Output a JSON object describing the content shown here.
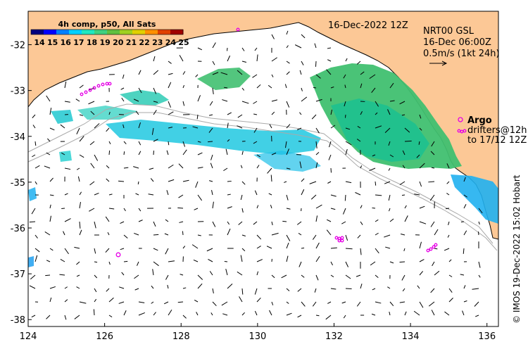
{
  "map": {
    "date_label": "16-Dec-2022 12Z",
    "credit": "© IMOS 19-Dec-2022 15:02 Hobart",
    "colors": {
      "land": "#fcc896",
      "ocean": "#ffffff",
      "isobath": "#aaaaaa",
      "argo": "#e600e6",
      "arrow": "#000000"
    }
  },
  "colorbar": {
    "title": "4h comp, p50, All Sats",
    "ticks": [
      "14",
      "15",
      "16",
      "17",
      "18",
      "19",
      "20",
      "21",
      "22",
      "23",
      "24",
      "25"
    ],
    "colors": [
      "#00007f",
      "#0000ff",
      "#0080ff",
      "#00d0ff",
      "#20e8c0",
      "#40d080",
      "#60c040",
      "#a0d020",
      "#e0d000",
      "#ff9000",
      "#e04000",
      "#a00000"
    ]
  },
  "current_legend": {
    "product": "NRT00 GSL",
    "time": "16-Dec 06:00Z",
    "scale": "0.5m/s (1kt 24h)"
  },
  "argo_legend": {
    "title": "Argo",
    "line1": "drifters@12h",
    "line2": "to 17/12 12Z"
  },
  "axes": {
    "x_ticks": [
      {
        "value": 124,
        "label": "124"
      },
      {
        "value": 126,
        "label": "126"
      },
      {
        "value": 128,
        "label": "128"
      },
      {
        "value": 130,
        "label": "130"
      },
      {
        "value": 132,
        "label": "132"
      },
      {
        "value": 134,
        "label": "134"
      },
      {
        "value": 136,
        "label": "136"
      }
    ],
    "y_ticks": [
      {
        "value": -32,
        "label": "-32"
      },
      {
        "value": -33,
        "label": "-33"
      },
      {
        "value": -34,
        "label": "-34"
      },
      {
        "value": -35,
        "label": "-35"
      },
      {
        "value": -36,
        "label": "-36"
      },
      {
        "value": -37,
        "label": "-37"
      },
      {
        "value": -38,
        "label": "-38"
      }
    ]
  }
}
